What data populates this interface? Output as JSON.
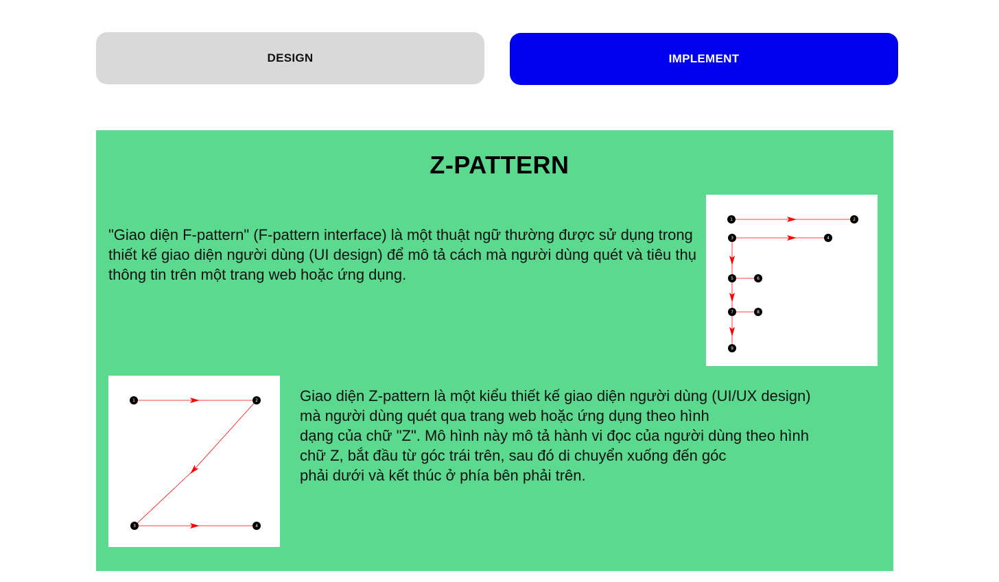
{
  "tabs": {
    "design_label": "DESIGN",
    "implement_label": "IMPLEMENT"
  },
  "colors": {
    "design_tab_bg": "#d9d9d9",
    "implement_tab_bg": "#0000ee",
    "panel_bg": "#5bd98e",
    "arrow": "#ff0000",
    "node": "#000000"
  },
  "panel": {
    "title": "Z-PATTERN",
    "f_pattern_text": "\"Giao diện F-pattern\" (F-pattern interface) là một thuật ngữ thường được sử dụng trong thiết kế giao diện người dùng (UI design) để mô tả cách mà người dùng quét và tiêu thụ thông tin trên một trang web hoặc ứng dụng.",
    "z_pattern_text": "Giao diện Z-pattern là một kiểu thiết kế giao diện người dùng (UI/UX design)\nmà người dùng quét qua trang web hoặc ứng dụng theo hình\ndạng của chữ \"Z\". Mô hình này mô tả hành vi đọc của người dùng theo hình\nchữ Z, bắt đầu từ góc trái trên, sau đó di chuyển xuống đến góc\nphải dưới và kết thúc ở phía bên phải trên."
  },
  "f_diagram": {
    "node_labels": [
      "1",
      "2",
      "3",
      "4",
      "5",
      "6",
      "7",
      "8",
      "9"
    ]
  },
  "z_diagram": {
    "node_labels": [
      "1",
      "2",
      "3",
      "4"
    ]
  }
}
